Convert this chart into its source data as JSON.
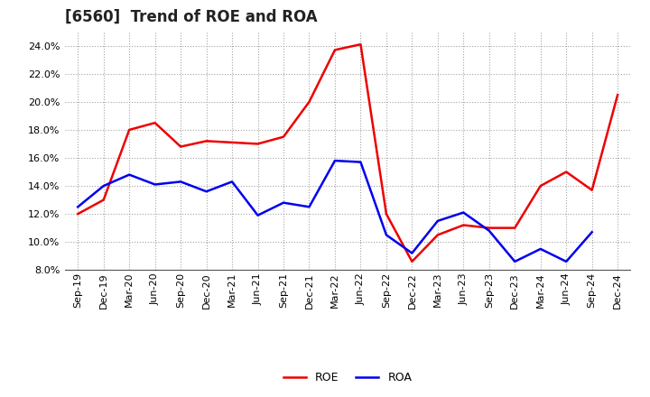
{
  "title": "[6560]  Trend of ROE and ROA",
  "x_labels": [
    "Sep-19",
    "Dec-19",
    "Mar-20",
    "Jun-20",
    "Sep-20",
    "Dec-20",
    "Mar-21",
    "Jun-21",
    "Sep-21",
    "Dec-21",
    "Mar-22",
    "Jun-22",
    "Sep-22",
    "Dec-22",
    "Mar-23",
    "Jun-23",
    "Sep-23",
    "Dec-23",
    "Mar-24",
    "Jun-24",
    "Sep-24",
    "Dec-24"
  ],
  "roe": [
    12.0,
    13.0,
    18.0,
    18.5,
    16.8,
    17.2,
    17.1,
    17.0,
    17.5,
    20.0,
    23.7,
    24.1,
    12.0,
    8.6,
    10.5,
    11.2,
    11.0,
    11.0,
    14.0,
    15.0,
    13.7,
    20.5
  ],
  "roa": [
    12.5,
    14.0,
    14.8,
    14.1,
    14.3,
    13.6,
    14.3,
    11.9,
    12.8,
    12.5,
    15.8,
    15.7,
    10.5,
    9.2,
    11.5,
    12.1,
    10.8,
    8.6,
    9.5,
    8.6,
    10.7,
    null
  ],
  "roe_color": "#ee0000",
  "roa_color": "#0000ee",
  "ylim": [
    8.0,
    25.0
  ],
  "yticks": [
    8.0,
    10.0,
    12.0,
    14.0,
    16.0,
    18.0,
    20.0,
    22.0,
    24.0
  ],
  "background_color": "#ffffff",
  "grid_color": "#999999",
  "title_fontsize": 12,
  "tick_fontsize": 8,
  "line_width": 1.8
}
